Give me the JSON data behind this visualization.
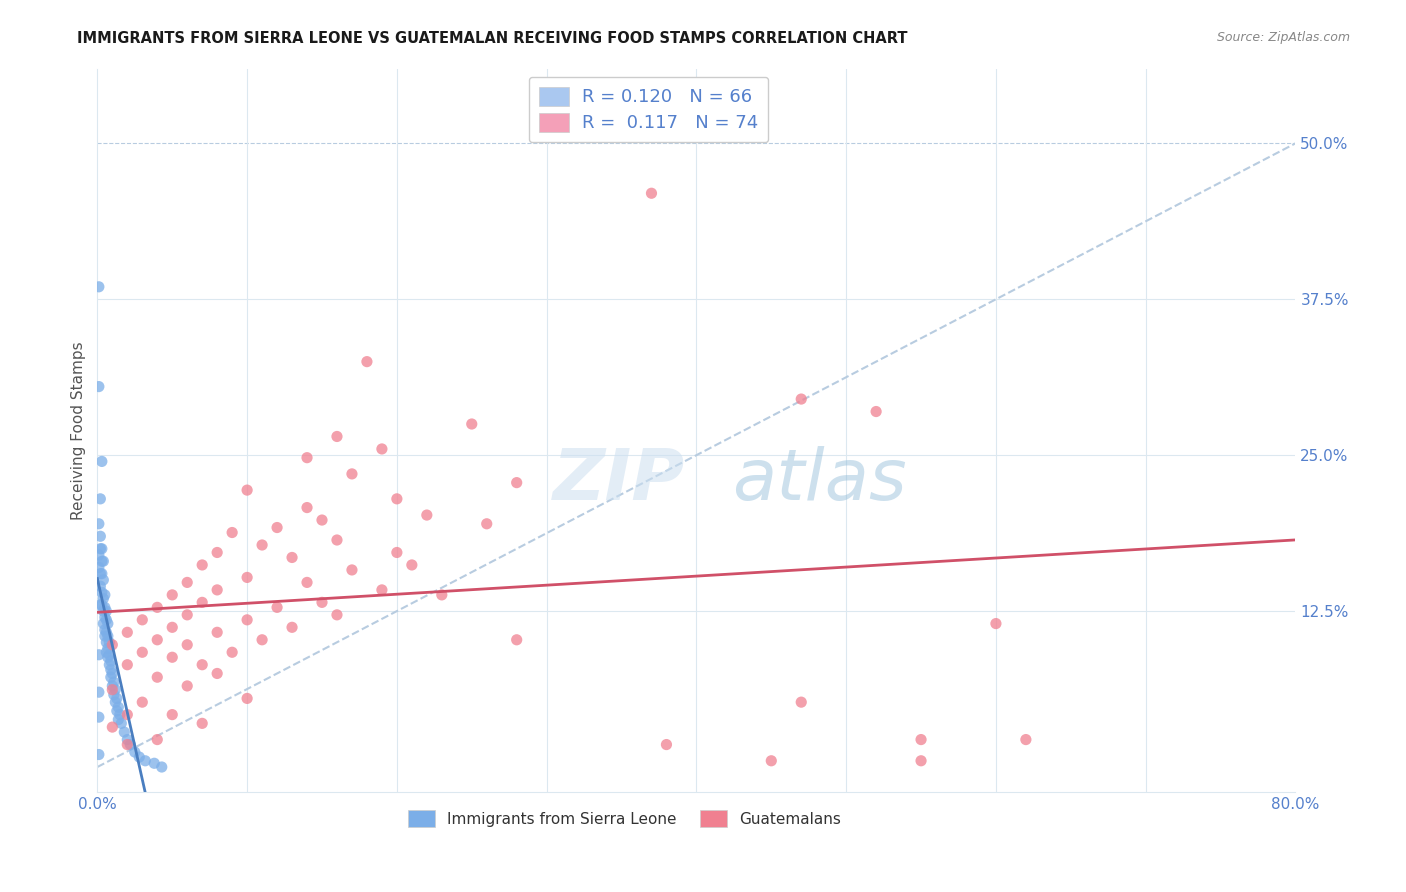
{
  "title": "IMMIGRANTS FROM SIERRA LEONE VS GUATEMALAN RECEIVING FOOD STAMPS CORRELATION CHART",
  "source": "Source: ZipAtlas.com",
  "ylabel": "Receiving Food Stamps",
  "xlim": [
    0.0,
    0.8
  ],
  "ylim": [
    -0.02,
    0.56
  ],
  "ytick_positions": [
    0.0,
    0.125,
    0.25,
    0.375,
    0.5
  ],
  "ytick_labels": [
    "",
    "12.5%",
    "25.0%",
    "37.5%",
    "50.0%"
  ],
  "legend_items": [
    {
      "label_r": "R = 0.120",
      "label_n": "N = 66",
      "color": "#aac8f0"
    },
    {
      "label_r": "R =  0.117",
      "label_n": "N = 74",
      "color": "#f4a0b8"
    }
  ],
  "legend_bottom": [
    "Immigrants from Sierra Leone",
    "Guatemalans"
  ],
  "sierra_leone_color": "#7baee8",
  "guatemalan_color": "#f08090",
  "sierra_leone_trend_color": "#4a7ec0",
  "guatemalan_trend_color": "#d05068",
  "dashed_line_color": "#b8cce0",
  "background_color": "#ffffff",
  "grid_color": "#dce8f0",
  "sierra_leone_points": [
    [
      0.001,
      0.385
    ],
    [
      0.001,
      0.305
    ],
    [
      0.003,
      0.245
    ],
    [
      0.002,
      0.215
    ],
    [
      0.001,
      0.195
    ],
    [
      0.002,
      0.185
    ],
    [
      0.003,
      0.175
    ],
    [
      0.002,
      0.175
    ],
    [
      0.003,
      0.165
    ],
    [
      0.004,
      0.165
    ],
    [
      0.001,
      0.16
    ],
    [
      0.002,
      0.155
    ],
    [
      0.003,
      0.155
    ],
    [
      0.004,
      0.15
    ],
    [
      0.002,
      0.145
    ],
    [
      0.003,
      0.14
    ],
    [
      0.005,
      0.138
    ],
    [
      0.004,
      0.135
    ],
    [
      0.003,
      0.13
    ],
    [
      0.005,
      0.128
    ],
    [
      0.004,
      0.125
    ],
    [
      0.006,
      0.125
    ],
    [
      0.005,
      0.12
    ],
    [
      0.006,
      0.118
    ],
    [
      0.004,
      0.115
    ],
    [
      0.007,
      0.115
    ],
    [
      0.005,
      0.11
    ],
    [
      0.006,
      0.108
    ],
    [
      0.007,
      0.105
    ],
    [
      0.005,
      0.105
    ],
    [
      0.006,
      0.1
    ],
    [
      0.008,
      0.1
    ],
    [
      0.007,
      0.095
    ],
    [
      0.006,
      0.092
    ],
    [
      0.008,
      0.09
    ],
    [
      0.007,
      0.088
    ],
    [
      0.009,
      0.085
    ],
    [
      0.008,
      0.082
    ],
    [
      0.009,
      0.078
    ],
    [
      0.01,
      0.075
    ],
    [
      0.009,
      0.072
    ],
    [
      0.011,
      0.068
    ],
    [
      0.01,
      0.065
    ],
    [
      0.012,
      0.062
    ],
    [
      0.011,
      0.058
    ],
    [
      0.013,
      0.055
    ],
    [
      0.012,
      0.052
    ],
    [
      0.014,
      0.048
    ],
    [
      0.013,
      0.045
    ],
    [
      0.015,
      0.042
    ],
    [
      0.014,
      0.038
    ],
    [
      0.016,
      0.035
    ],
    [
      0.018,
      0.028
    ],
    [
      0.02,
      0.022
    ],
    [
      0.022,
      0.018
    ],
    [
      0.025,
      0.012
    ],
    [
      0.028,
      0.008
    ],
    [
      0.032,
      0.005
    ],
    [
      0.038,
      0.003
    ],
    [
      0.043,
      0.0
    ],
    [
      0.001,
      0.17
    ],
    [
      0.002,
      0.13
    ],
    [
      0.001,
      0.09
    ],
    [
      0.001,
      0.06
    ],
    [
      0.001,
      0.04
    ],
    [
      0.001,
      0.01
    ]
  ],
  "guatemalan_points": [
    [
      0.37,
      0.46
    ],
    [
      0.47,
      0.295
    ],
    [
      0.52,
      0.285
    ],
    [
      0.18,
      0.325
    ],
    [
      0.25,
      0.275
    ],
    [
      0.16,
      0.265
    ],
    [
      0.19,
      0.255
    ],
    [
      0.14,
      0.248
    ],
    [
      0.17,
      0.235
    ],
    [
      0.28,
      0.228
    ],
    [
      0.1,
      0.222
    ],
    [
      0.2,
      0.215
    ],
    [
      0.14,
      0.208
    ],
    [
      0.22,
      0.202
    ],
    [
      0.15,
      0.198
    ],
    [
      0.12,
      0.192
    ],
    [
      0.26,
      0.195
    ],
    [
      0.09,
      0.188
    ],
    [
      0.16,
      0.182
    ],
    [
      0.11,
      0.178
    ],
    [
      0.2,
      0.172
    ],
    [
      0.08,
      0.172
    ],
    [
      0.13,
      0.168
    ],
    [
      0.21,
      0.162
    ],
    [
      0.07,
      0.162
    ],
    [
      0.17,
      0.158
    ],
    [
      0.1,
      0.152
    ],
    [
      0.14,
      0.148
    ],
    [
      0.06,
      0.148
    ],
    [
      0.19,
      0.142
    ],
    [
      0.08,
      0.142
    ],
    [
      0.23,
      0.138
    ],
    [
      0.05,
      0.138
    ],
    [
      0.15,
      0.132
    ],
    [
      0.07,
      0.132
    ],
    [
      0.12,
      0.128
    ],
    [
      0.04,
      0.128
    ],
    [
      0.16,
      0.122
    ],
    [
      0.06,
      0.122
    ],
    [
      0.1,
      0.118
    ],
    [
      0.03,
      0.118
    ],
    [
      0.13,
      0.112
    ],
    [
      0.05,
      0.112
    ],
    [
      0.08,
      0.108
    ],
    [
      0.02,
      0.108
    ],
    [
      0.11,
      0.102
    ],
    [
      0.04,
      0.102
    ],
    [
      0.06,
      0.098
    ],
    [
      0.01,
      0.098
    ],
    [
      0.09,
      0.092
    ],
    [
      0.03,
      0.092
    ],
    [
      0.05,
      0.088
    ],
    [
      0.07,
      0.082
    ],
    [
      0.02,
      0.082
    ],
    [
      0.08,
      0.075
    ],
    [
      0.04,
      0.072
    ],
    [
      0.06,
      0.065
    ],
    [
      0.01,
      0.062
    ],
    [
      0.1,
      0.055
    ],
    [
      0.03,
      0.052
    ],
    [
      0.05,
      0.042
    ],
    [
      0.02,
      0.042
    ],
    [
      0.07,
      0.035
    ],
    [
      0.01,
      0.032
    ],
    [
      0.04,
      0.022
    ],
    [
      0.38,
      0.018
    ],
    [
      0.02,
      0.018
    ],
    [
      0.6,
      0.115
    ],
    [
      0.28,
      0.102
    ],
    [
      0.47,
      0.052
    ],
    [
      0.55,
      0.022
    ],
    [
      0.62,
      0.022
    ],
    [
      0.45,
      0.005
    ],
    [
      0.55,
      0.005
    ]
  ]
}
